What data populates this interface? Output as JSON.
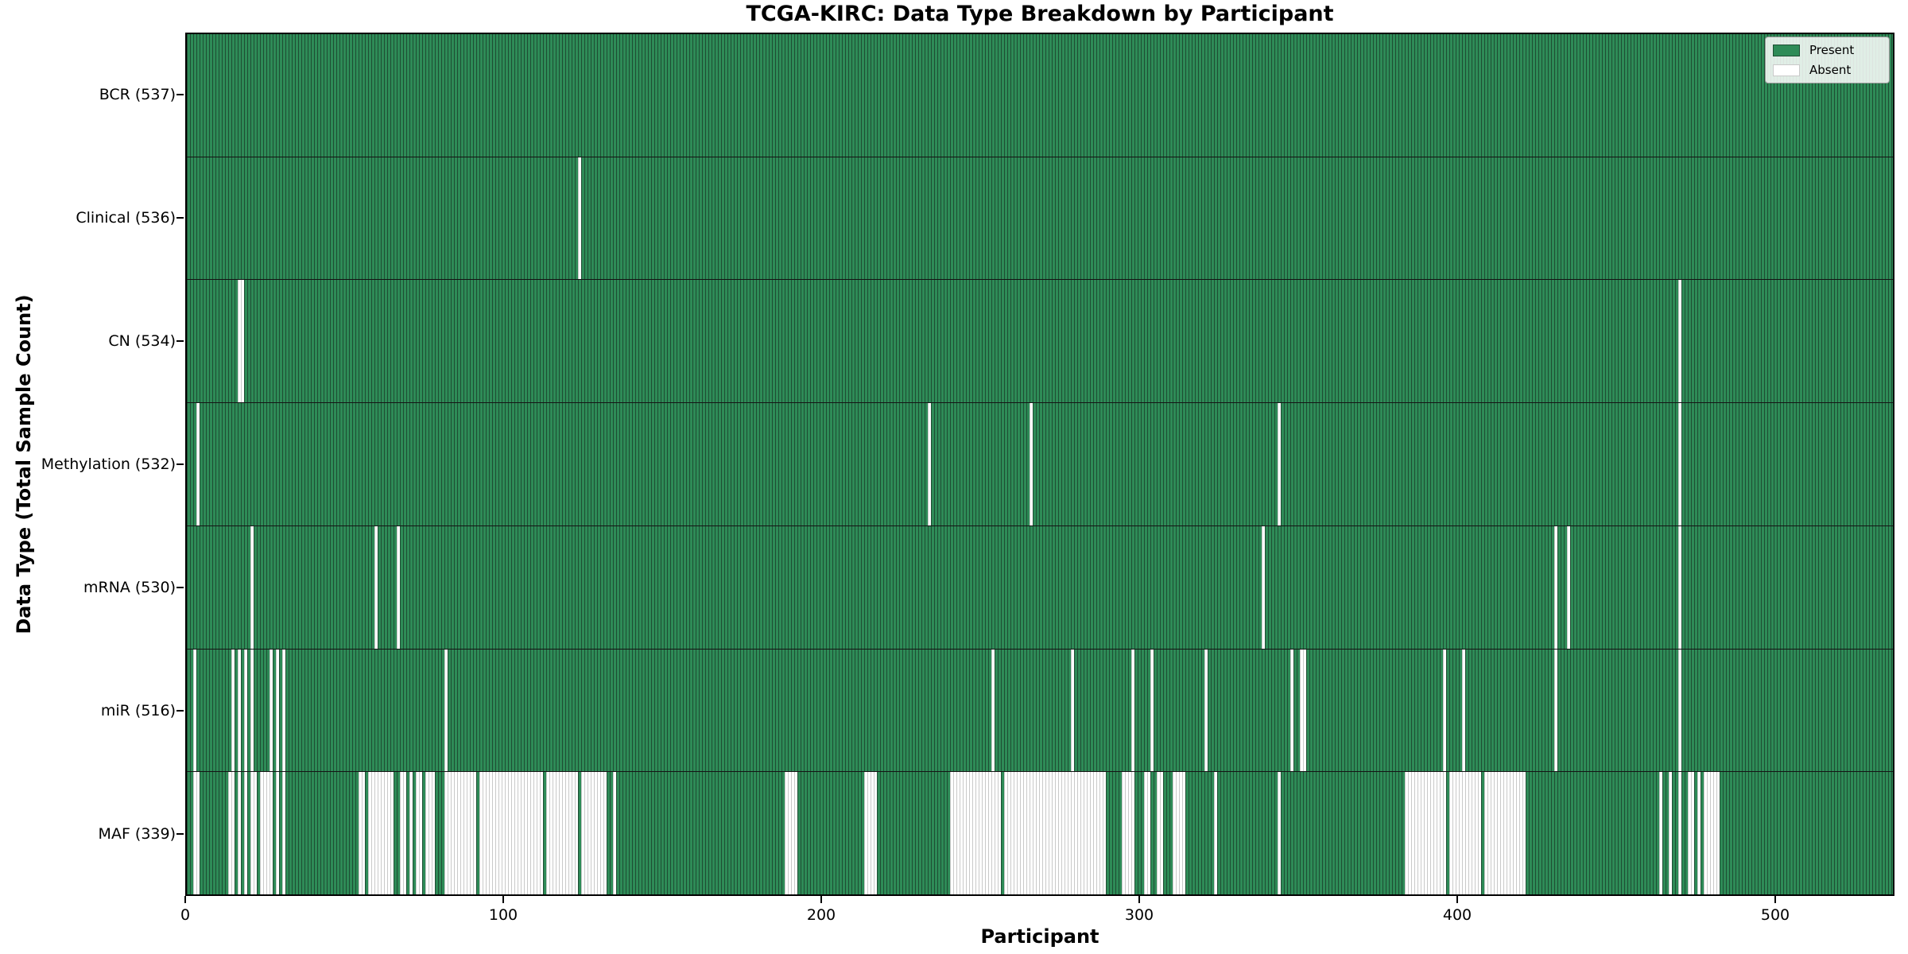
{
  "chart_data": {
    "type": "heatmap",
    "title": "TCGA-KIRC: Data Type Breakdown by Participant",
    "x_axis": {
      "label": "Participant",
      "ticks": [
        0,
        100,
        200,
        300,
        400,
        500
      ],
      "range": [
        0,
        537.5
      ]
    },
    "y_axis": {
      "label": "Data Type (Total Sample Count)"
    },
    "n_participants": 537,
    "present_color": "#2e8b57",
    "present_edge": "#1e4d33",
    "absent_color": "#ffffff",
    "absent_edge": "#c9c9c9",
    "grid_line_color": "#141414",
    "legend": {
      "position": "upper right",
      "entries": [
        {
          "label": "Present",
          "color": "#2e8b57",
          "edge": "#1e4d33"
        },
        {
          "label": "Absent",
          "color": "#ffffff",
          "edge": "#c9c9c9"
        }
      ]
    },
    "rows": [
      {
        "name": "BCR",
        "total": 537,
        "label": "BCR (537)",
        "absent_ranges": []
      },
      {
        "name": "Clinical",
        "total": 536,
        "label": "Clinical (536)",
        "absent_ranges": [
          [
            123,
            123
          ]
        ]
      },
      {
        "name": "CN",
        "total": 534,
        "label": "CN (534)",
        "absent_ranges": [
          [
            16,
            17
          ],
          [
            469,
            469
          ]
        ]
      },
      {
        "name": "Methylation",
        "total": 532,
        "label": "Methylation (532)",
        "absent_ranges": [
          [
            3,
            3
          ],
          [
            233,
            233
          ],
          [
            265,
            265
          ],
          [
            343,
            343
          ],
          [
            469,
            469
          ]
        ]
      },
      {
        "name": "mRNA",
        "total": 530,
        "label": "mRNA (530)",
        "absent_ranges": [
          [
            20,
            20
          ],
          [
            59,
            59
          ],
          [
            66,
            66
          ],
          [
            338,
            338
          ],
          [
            430,
            430
          ],
          [
            434,
            434
          ],
          [
            469,
            469
          ]
        ]
      },
      {
        "name": "miR",
        "total": 516,
        "label": "miR (516)",
        "absent_ranges": [
          [
            2,
            2
          ],
          [
            14,
            14
          ],
          [
            16,
            16
          ],
          [
            18,
            18
          ],
          [
            20,
            20
          ],
          [
            26,
            26
          ],
          [
            28,
            28
          ],
          [
            30,
            30
          ],
          [
            81,
            81
          ],
          [
            253,
            253
          ],
          [
            278,
            278
          ],
          [
            297,
            297
          ],
          [
            303,
            303
          ],
          [
            320,
            320
          ],
          [
            347,
            347
          ],
          [
            350,
            351
          ],
          [
            395,
            395
          ],
          [
            401,
            401
          ],
          [
            430,
            430
          ],
          [
            469,
            469
          ]
        ]
      },
      {
        "name": "MAF",
        "total": 339,
        "label": "MAF (339)",
        "absent_ranges": [
          [
            2,
            3
          ],
          [
            13,
            14
          ],
          [
            16,
            16
          ],
          [
            18,
            18
          ],
          [
            20,
            21
          ],
          [
            23,
            26
          ],
          [
            28,
            28
          ],
          [
            30,
            30
          ],
          [
            54,
            55
          ],
          [
            57,
            64
          ],
          [
            67,
            68
          ],
          [
            70,
            70
          ],
          [
            72,
            73
          ],
          [
            75,
            77
          ],
          [
            81,
            90
          ],
          [
            92,
            111
          ],
          [
            113,
            122
          ],
          [
            124,
            131
          ],
          [
            134,
            134
          ],
          [
            188,
            191
          ],
          [
            213,
            216
          ],
          [
            240,
            255
          ],
          [
            257,
            288
          ],
          [
            294,
            297
          ],
          [
            301,
            302
          ],
          [
            305,
            306
          ],
          [
            310,
            313
          ],
          [
            323,
            323
          ],
          [
            343,
            343
          ],
          [
            383,
            395
          ],
          [
            397,
            406
          ],
          [
            408,
            420
          ],
          [
            463,
            463
          ],
          [
            466,
            466
          ],
          [
            469,
            469
          ],
          [
            472,
            473
          ],
          [
            475,
            475
          ],
          [
            477,
            481
          ]
        ]
      }
    ]
  }
}
